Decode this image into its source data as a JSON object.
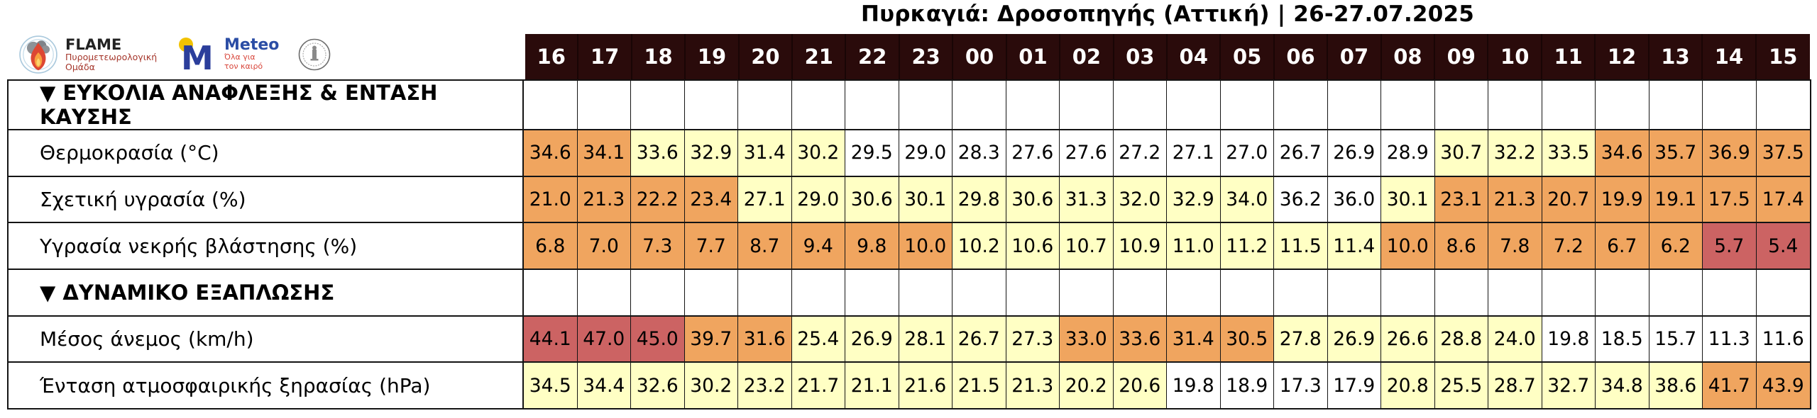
{
  "header": {
    "title": "Πυρκαγιά: Δροσοπηγής (Αττική) | 26-27.07.2025"
  },
  "logos": {
    "flame": {
      "wordmark": "FLAME",
      "subtitle": "Πυρομετεωρολογική Ομάδα"
    },
    "meteo": {
      "wordmark": "Meteo",
      "subtitle": "Όλα για τον καιρό"
    },
    "seal": {
      "icon": "observatory-seal-icon"
    }
  },
  "colors": {
    "hour_row_bg": "#2a0b0b",
    "border": "#141414",
    "white": "#ffffff",
    "yellow": "#ffffc4",
    "orange": "#f0a55f",
    "red": "#cc6363"
  },
  "chart_data": {
    "type": "heatmap",
    "title": "Πυρκαγιά: Δροσοπηγής (Αττική) | 26-27.07.2025",
    "x": [
      "16",
      "17",
      "18",
      "19",
      "20",
      "21",
      "22",
      "23",
      "00",
      "01",
      "02",
      "03",
      "04",
      "05",
      "06",
      "07",
      "08",
      "09",
      "10",
      "11",
      "12",
      "13",
      "14",
      "15"
    ],
    "cell_color_key": {
      "w": "#ffffff",
      "y": "#ffffc4",
      "o": "#f0a55f",
      "r": "#cc6363"
    },
    "sections": [
      {
        "label": "▼ ΕΥΚΟΛΙΑ ΑΝΑΦΛΕΞΗΣ & ΕΝΤΑΣΗ ΚΑΥΣΗΣ",
        "series": [
          {
            "name": "Θερμοκρασία (°C)",
            "values": [
              34.6,
              34.1,
              33.6,
              32.9,
              31.4,
              30.2,
              29.5,
              29.0,
              28.3,
              27.6,
              27.6,
              27.2,
              27.1,
              27.0,
              26.7,
              26.9,
              28.9,
              30.7,
              32.2,
              33.5,
              34.6,
              35.7,
              36.9,
              37.5
            ],
            "levels": "ooyyyywwwwwwwwwwwyyyoooo"
          },
          {
            "name": "Σχετική υγρασία (%)",
            "values": [
              21.0,
              21.3,
              22.2,
              23.4,
              27.1,
              29.0,
              30.6,
              30.1,
              29.8,
              30.6,
              31.3,
              32.0,
              32.9,
              34.0,
              36.2,
              36.0,
              30.1,
              23.1,
              21.3,
              20.7,
              19.9,
              19.1,
              17.5,
              17.4
            ],
            "levels": "ooooyyyyyyyyyywwyooooooo"
          },
          {
            "name": "Υγρασία νεκρής βλάστησης (%)",
            "values": [
              6.8,
              7.0,
              7.3,
              7.7,
              8.7,
              9.4,
              9.8,
              10.0,
              10.2,
              10.6,
              10.7,
              10.9,
              11.0,
              11.2,
              11.5,
              11.4,
              10.0,
              8.6,
              7.8,
              7.2,
              6.7,
              6.2,
              5.7,
              5.4
            ],
            "levels": "ooooooooyyyyyyyyoooooorr"
          }
        ]
      },
      {
        "label": "▼ ΔΥΝΑΜΙΚΟ ΕΞΑΠΛΩΣΗΣ",
        "series": [
          {
            "name": "Μέσος άνεμος (km/h)",
            "values": [
              44.1,
              47.0,
              45.0,
              39.7,
              31.6,
              25.4,
              26.9,
              28.1,
              26.7,
              27.3,
              33.0,
              33.6,
              31.4,
              30.5,
              27.8,
              26.9,
              26.6,
              28.8,
              24.0,
              19.8,
              18.5,
              15.7,
              11.3,
              11.6
            ],
            "levels": "rrrooyyyyyooooyyyyywwwww"
          },
          {
            "name": "Ένταση ατμοσφαιρικής ξηρασίας (hPa)",
            "values": [
              34.5,
              34.4,
              32.6,
              30.2,
              23.2,
              21.7,
              21.1,
              21.6,
              21.5,
              21.3,
              20.2,
              20.6,
              19.8,
              18.9,
              17.3,
              17.9,
              20.8,
              25.5,
              28.7,
              32.7,
              34.8,
              38.6,
              41.7,
              43.9
            ],
            "levels": "yyyyyyyyyyyywwwwyyyyyyoo"
          }
        ]
      }
    ]
  }
}
